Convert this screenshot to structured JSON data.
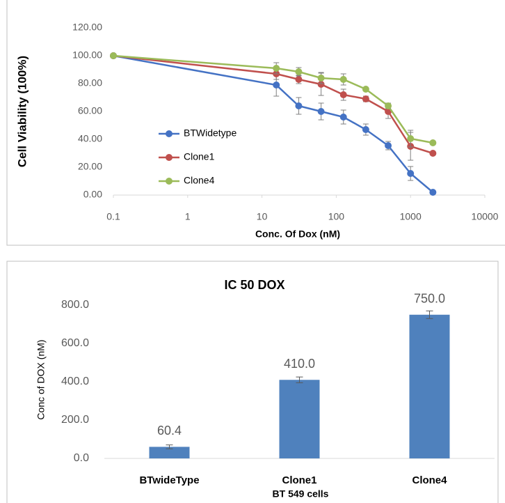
{
  "chart_data": [
    {
      "type": "line",
      "y_label": "Cell Viability (100%)",
      "x_label": "Conc. Of Dox (nM)",
      "log_x": true,
      "x": [
        0.1,
        15.6,
        31.25,
        62.5,
        125,
        250,
        500,
        1000,
        2000
      ],
      "xlim": [
        0.1,
        10000
      ],
      "xticks": [
        0.1,
        1,
        10,
        100,
        1000,
        10000
      ],
      "ylim": [
        0,
        120
      ],
      "yticks": [
        {
          "value": 0,
          "label": "0.00"
        },
        {
          "value": 20,
          "label": "20.00"
        },
        {
          "value": 40,
          "label": "40.00"
        },
        {
          "value": 60,
          "label": "60.00"
        },
        {
          "value": 80,
          "label": "80.00"
        },
        {
          "value": 100,
          "label": "100.00"
        },
        {
          "value": 120,
          "label": "120.00"
        }
      ],
      "legend": "left",
      "series": [
        {
          "name": "BTWidetype",
          "color": "#4472c4",
          "values": [
            100,
            79,
            64,
            60,
            56,
            47,
            35.5,
            15.5,
            2
          ],
          "errors": [
            0,
            8,
            6,
            6,
            5,
            4,
            3,
            5,
            1
          ]
        },
        {
          "name": "Clone1",
          "color": "#c0504d",
          "values": [
            100,
            87,
            83,
            79.5,
            72,
            69,
            60,
            35,
            30
          ],
          "errors": [
            0,
            4,
            3,
            8,
            4,
            2,
            5,
            10,
            1
          ]
        },
        {
          "name": "Clone4",
          "color": "#9bbb59",
          "values": [
            100,
            91,
            88.5,
            84,
            83,
            76,
            64,
            40.5,
            37.5
          ],
          "errors": [
            0,
            4,
            3,
            4,
            4,
            1,
            2,
            6,
            1
          ]
        }
      ]
    },
    {
      "type": "bar",
      "title": "IC 50 DOX",
      "y_label": "Conc of DOX (nM)",
      "x_label": "BT 549 cells",
      "categories": [
        "BTwideType",
        "Clone1",
        "Clone4"
      ],
      "values": [
        60.4,
        410,
        750
      ],
      "value_labels": [
        "60.4",
        "410.0",
        "750.0"
      ],
      "errors": [
        10,
        15,
        20
      ],
      "color": "#4f81bd",
      "ylim": [
        0,
        800
      ],
      "yticks": [
        {
          "value": 0,
          "label": "0.0"
        },
        {
          "value": 200,
          "label": "200.0"
        },
        {
          "value": 400,
          "label": "400.0"
        },
        {
          "value": 600,
          "label": "600.0"
        },
        {
          "value": 800,
          "label": "800.0"
        }
      ]
    }
  ]
}
